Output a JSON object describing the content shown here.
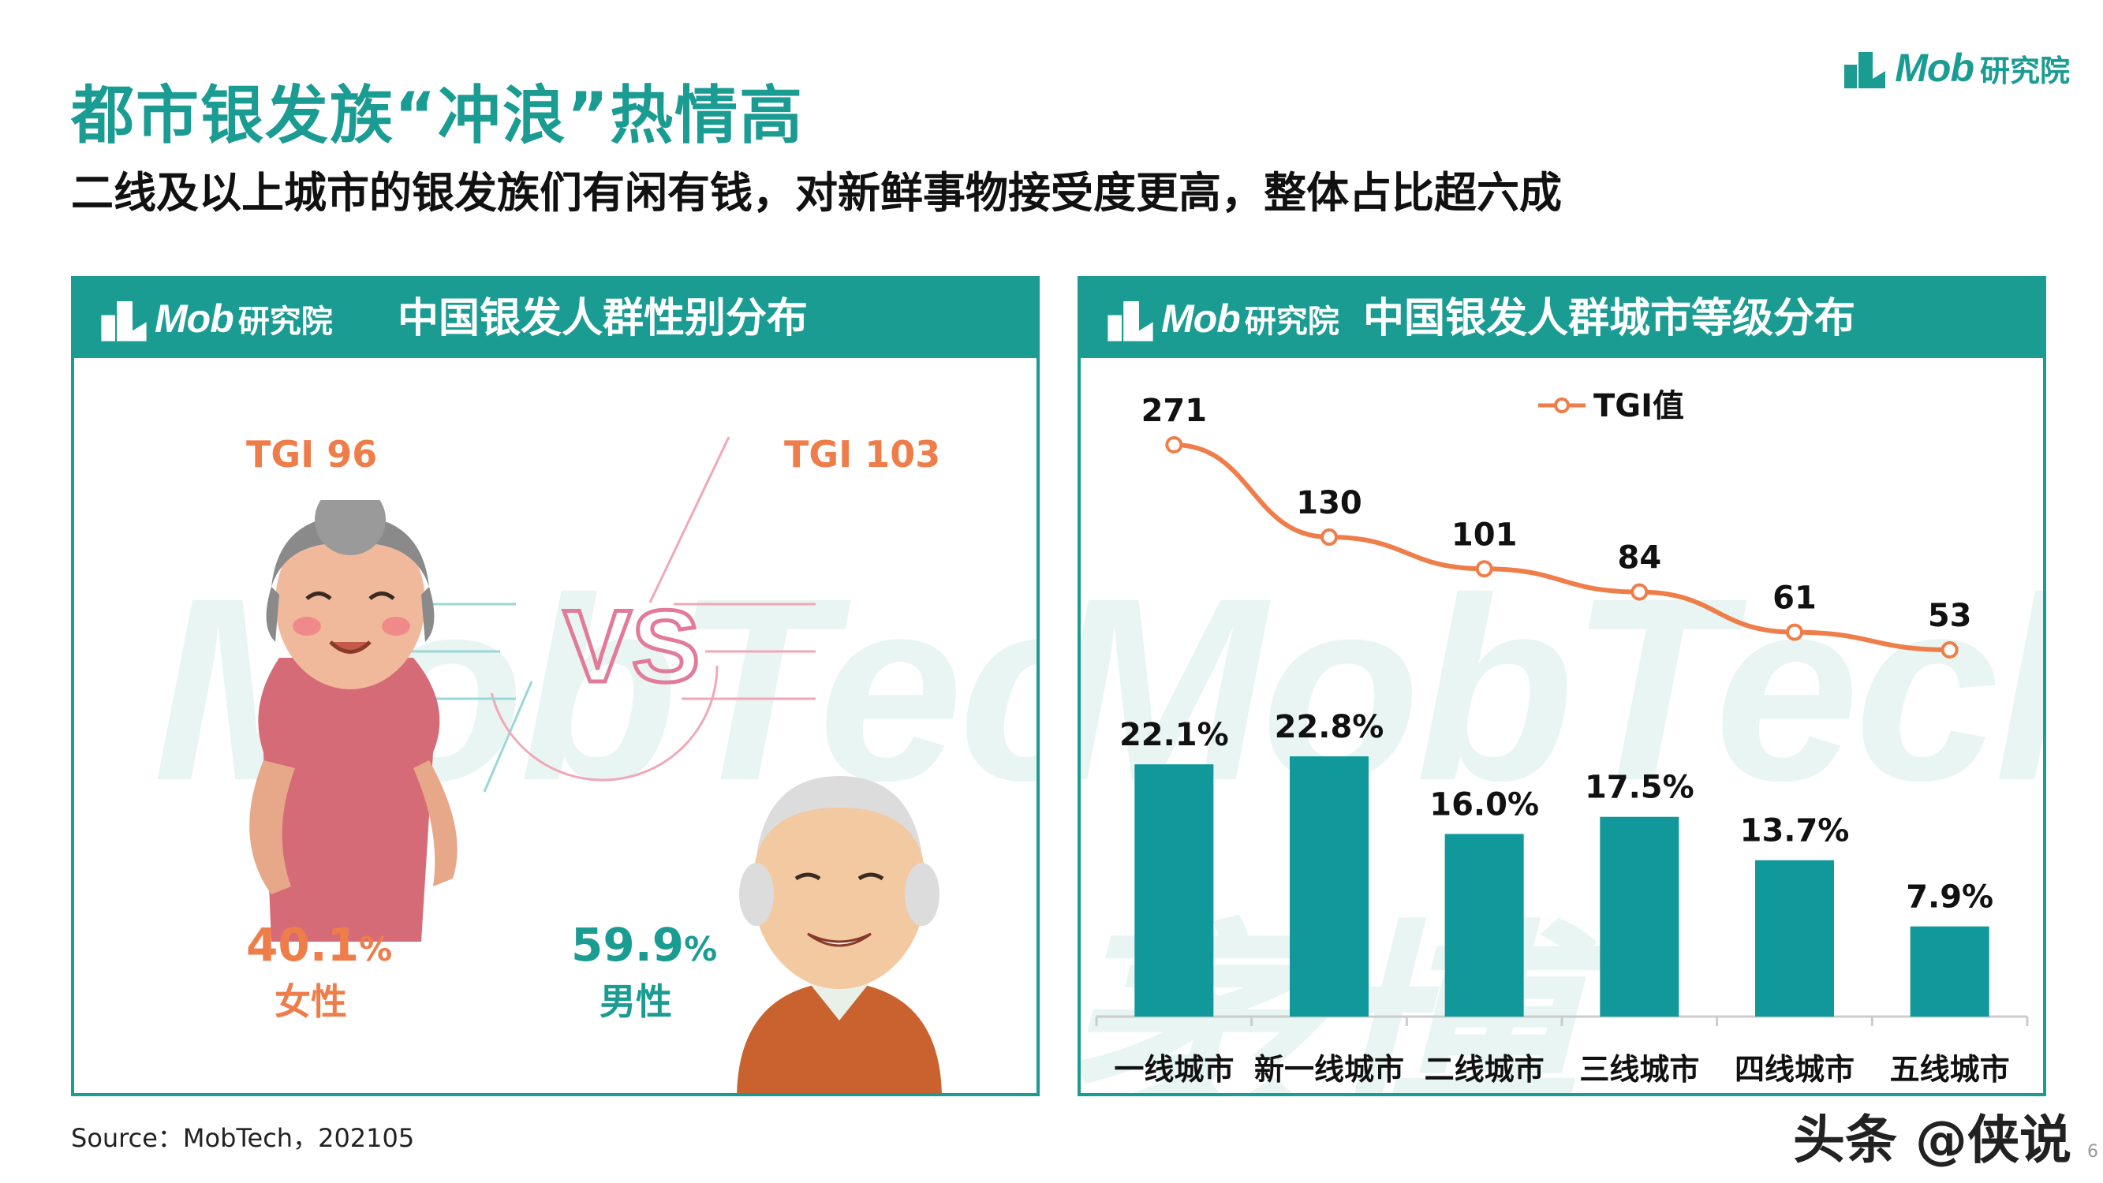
{
  "header": {
    "title": "都市银发族“冲浪”热情高",
    "subtitle": "二线及以上城市的银发族们有闲有钱，对新鲜事物接受度更高，整体占比超六成"
  },
  "logo": {
    "mob": "Mob",
    "cn": "研究院"
  },
  "watermark": {
    "text": "MobTech",
    "cn": "袤博"
  },
  "gender_panel": {
    "title": "中国银发人群性别分布",
    "female": {
      "tgi": "TGI  96",
      "pct": "40.1",
      "pct_unit": "%",
      "label": "女性",
      "color": "#ef7d4a"
    },
    "male": {
      "tgi": "TGI  103",
      "pct": "59.9",
      "pct_unit": "%",
      "label": "男性",
      "color": "#1a9c93"
    },
    "vs_text": "VS"
  },
  "city_panel": {
    "title": "中国银发人群城市等级分布"
  },
  "chart_data": {
    "type": "bar",
    "categories": [
      "一线城市",
      "新一线城市",
      "二线城市",
      "三线城市",
      "四线城市",
      "五线城市"
    ],
    "series": [
      {
        "values": [
          22.1,
          22.8,
          16.0,
          17.5,
          13.7,
          7.9
        ],
        "labels": [
          "22.1%",
          "22.8%",
          "16.0%",
          "17.5%",
          "13.7%",
          "7.9%"
        ],
        "color": "#10989a",
        "type": "bar"
      },
      {
        "name": "TGI值",
        "values": [
          271,
          130,
          101,
          84,
          61,
          53
        ],
        "labels": [
          "271",
          "130",
          "101",
          "84",
          "61",
          "53"
        ],
        "color": "#ef7d4a",
        "type": "line"
      }
    ],
    "legend": "top-center",
    "grid": false
  },
  "source": "Source：MobTech，202105",
  "brand_bottom": "头条 @侠说",
  "page_number": "6"
}
